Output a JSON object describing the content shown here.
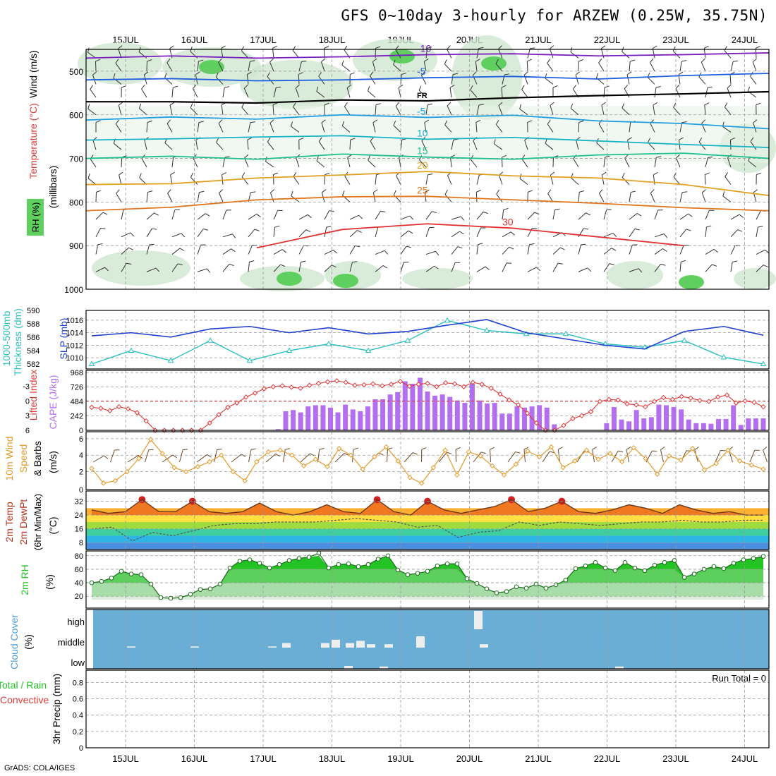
{
  "header": {
    "title": "GFS 0~10day 3-hourly for ARZEW (0.25W, 35.75N)",
    "credit": "GrADS: COLA/IGES"
  },
  "time_axis": {
    "labels": [
      "15JUL",
      "16JUL",
      "17JUL",
      "18JUL",
      "19JUL",
      "20JUL",
      "21JUL",
      "22JUL",
      "23JUL",
      "24JUL"
    ],
    "steps": 80
  },
  "colors": {
    "slp": "#1f3fcf",
    "thickness": "#2bbfbf",
    "cape": "#b36ff0",
    "lifted_index": "#e03a3a",
    "wind_speed": "#e59a2a",
    "rh_green": "#22c322",
    "cloud_bg": "#6aaed6",
    "cloud_fill": "#eeeeee",
    "grid": "#999999"
  },
  "panels": {
    "upper_air": {
      "y_labels": [
        "Wind (m/s)",
        "Temperature (°C)",
        "RH (%)",
        "(millibars)"
      ],
      "levels": [
        500,
        600,
        700,
        800,
        900,
        1000
      ],
      "isotherms": [
        {
          "label": "-10",
          "color": "#7a1fbf",
          "pressure": [
            470,
            465,
            470,
            467,
            462,
            460,
            465,
            462,
            458
          ]
        },
        {
          "label": "-5",
          "color": "#1f5fe0",
          "pressure": [
            520,
            517,
            522,
            520,
            515,
            512,
            518,
            510,
            505
          ]
        },
        {
          "label": "FR",
          "color": "#000000",
          "pressure": [
            570,
            570,
            573,
            566,
            568,
            561,
            556,
            552,
            547
          ]
        },
        {
          "label": "-5",
          "color": "#1f9fe0",
          "pressure": [
            612,
            605,
            610,
            600,
            606,
            601,
            614,
            620,
            632
          ]
        },
        {
          "label": "10",
          "color": "#17b3c3",
          "pressure": [
            658,
            655,
            651,
            648,
            656,
            652,
            660,
            668,
            675
          ]
        },
        {
          "label": "15",
          "color": "#1fbf8f",
          "pressure": [
            700,
            695,
            702,
            690,
            697,
            702,
            692,
            688,
            700
          ]
        },
        {
          "label": "20",
          "color": "#e0a020",
          "pressure": [
            760,
            758,
            745,
            738,
            730,
            740,
            745,
            760,
            785
          ]
        },
        {
          "label": "25",
          "color": "#e0761f",
          "pressure": [
            820,
            812,
            795,
            788,
            787,
            795,
            803,
            813,
            820
          ]
        },
        {
          "label": "30",
          "color": "#e03030",
          "pressure": [
            null,
            null,
            905,
            863,
            850,
            860,
            880,
            900,
            null
          ]
        }
      ]
    },
    "slp_thickness": {
      "y_labels": [
        "1000-500mb",
        "Thickness (dm)",
        "SLP (mb)"
      ],
      "thickness_ticks": [
        582,
        584,
        586,
        588,
        590
      ],
      "slp_ticks": [
        1010,
        1012,
        1014,
        1016
      ],
      "slp_mb": [
        1013.5,
        1014.0,
        1013.3,
        1014.6,
        1015.0,
        1014.0,
        1014.8,
        1013.8,
        1014.2,
        1015.2,
        1016.1,
        1014.0,
        1013.0,
        1012.0,
        1011.4,
        1014.2,
        1015.0,
        1013.6
      ],
      "thickness_dm": [
        582.0,
        584.0,
        582.5,
        585.5,
        582.5,
        584.0,
        585.0,
        584.0,
        585.5,
        588.5,
        587.0,
        586.5,
        586.5,
        585.0,
        584.5,
        585.5,
        583.0,
        582.0
      ]
    },
    "cape_li": {
      "y_labels": [
        "Lifted Index",
        "CAPE (J/kg)"
      ],
      "cape_ticks": [
        0,
        242,
        484,
        726,
        968
      ],
      "li_ticks": [
        "-3",
        "0",
        "3",
        "6"
      ],
      "cape_jkg": [
        0,
        0,
        0,
        0,
        0,
        0,
        0,
        0,
        0,
        0,
        0,
        0,
        0,
        0,
        0,
        0,
        0,
        0,
        0,
        0,
        0,
        0,
        0,
        0,
        0,
        20,
        320,
        340,
        300,
        400,
        420,
        420,
        380,
        300,
        430,
        350,
        320,
        400,
        520,
        520,
        600,
        640,
        820,
        780,
        880,
        650,
        580,
        600,
        560,
        500,
        460,
        780,
        500,
        450,
        460,
        280,
        280,
        400,
        380,
        400,
        420,
        380,
        100,
        0,
        0,
        0,
        0,
        0,
        0,
        120,
        390,
        180,
        150,
        340,
        200,
        220,
        430,
        420,
        390,
        350,
        180,
        120,
        120,
        110,
        190,
        190,
        420,
        90,
        200,
        200,
        200
      ],
      "li": [
        1.3,
        1.5,
        2.0,
        1.2,
        1.6,
        2.4,
        4.1,
        6.0,
        6.5,
        7.0,
        7.2,
        7.0,
        6.3,
        4.5,
        2.8,
        1.3,
        0.4,
        -0.8,
        -1.6,
        -2.5,
        -2.9,
        -3.1,
        -2.8,
        -2.6,
        -3.2,
        -3.6,
        -3.9,
        -4.1,
        -3.8,
        -3.2,
        -3.3,
        -3.5,
        -3.1,
        -3.4,
        -4.0,
        -3.0,
        -3.4,
        -3.6,
        -2.9,
        -3.7,
        -3.5,
        -2.9,
        -3.8,
        -3.4,
        -2.6,
        -1.4,
        -0.2,
        0.8,
        2.5,
        4.5,
        6.8,
        7.2,
        5.0,
        3.6,
        3.0,
        2.2,
        0.1,
        -0.3,
        -0.2,
        0.6,
        0.8,
        1.2,
        0.1,
        -0.7,
        -0.3,
        -0.9,
        -0.6,
        -0.1,
        0.1,
        -0.8,
        -1.2,
        0.4,
        0.0,
        0.3,
        1.2
      ],
      "cape_label_marks": [
        "968",
        "726",
        "484",
        "242"
      ]
    },
    "wind10m": {
      "y_labels": [
        "10m Wind",
        "Speed",
        "& Barbs",
        "(m/s)"
      ],
      "ticks": [
        2,
        4,
        6
      ],
      "speed_ms": [
        2.4,
        0.6,
        0.9,
        2.0,
        3.6,
        5.9,
        4.2,
        2.5,
        2.0,
        2.6,
        3.2,
        4.0,
        2.0,
        0.9,
        3.2,
        4.4,
        4.6,
        4.0,
        2.7,
        3.5,
        2.6,
        4.8,
        4.0,
        2.3,
        3.8,
        5.0,
        3.3,
        1.3,
        0.6,
        2.5,
        4.6,
        1.6,
        4.4,
        3.9,
        2.7,
        1.6,
        2.9,
        4.5,
        3.8,
        5.0,
        2.5,
        3.3,
        4.6,
        3.5,
        4.2,
        3.2,
        4.9,
        3.6,
        1.7,
        3.9,
        3.4,
        4.8,
        2.2,
        3.0,
        4.6,
        3.3,
        2.8,
        2.3
      ],
      "low_label": "0"
    },
    "temp2m": {
      "y_labels": [
        "2m Temp",
        "2m DewPt",
        "(6hr Min/Max)",
        "(°C)"
      ],
      "ticks": [
        8,
        16,
        24,
        32
      ],
      "temp_c": [
        27,
        25,
        26,
        33,
        26,
        26,
        32,
        26,
        25,
        26,
        31,
        26,
        24,
        26,
        30,
        26,
        25,
        33,
        26,
        24,
        32,
        27,
        25,
        27,
        29,
        33,
        26,
        28,
        32,
        26,
        25,
        27,
        30,
        28,
        25,
        30,
        27,
        25,
        26,
        24,
        24
      ],
      "dewpt_c": [
        16,
        17,
        9,
        14,
        12,
        15,
        18,
        19,
        19,
        20,
        20,
        20,
        21,
        22,
        21,
        20,
        17,
        18,
        11,
        14,
        15,
        20,
        18,
        20,
        19,
        18,
        19,
        20,
        20,
        21,
        20,
        20,
        21,
        21
      ]
    },
    "rh2m": {
      "y_labels": [
        "2m RH",
        "(%)"
      ],
      "ticks": [
        20,
        40,
        60,
        80
      ],
      "rh_pct": [
        40,
        42,
        47,
        57,
        53,
        52,
        38,
        18,
        17,
        18,
        23,
        30,
        31,
        38,
        62,
        72,
        74,
        69,
        62,
        67,
        73,
        76,
        78,
        84,
        62,
        67,
        68,
        64,
        67,
        75,
        80,
        59,
        52,
        54,
        57,
        65,
        68,
        68,
        46,
        39,
        31,
        25,
        27,
        34,
        32,
        38,
        32,
        37,
        44,
        61,
        65,
        70,
        62,
        58,
        70,
        62,
        58,
        66,
        70,
        73,
        48,
        53,
        60,
        64,
        61,
        69,
        74,
        76,
        79
      ]
    },
    "cloud": {
      "y_labels": [
        "Cloud Cover",
        "(%)"
      ],
      "levels": [
        "high",
        "middle",
        "low"
      ]
    },
    "precip": {
      "y_labels": [
        "Total / Rain",
        "Convective",
        "3hr Precip (mm)"
      ],
      "ticks": [
        "0",
        "0.2",
        "0.4",
        "0.6",
        "0.8"
      ],
      "run_total": "Run Total = 0"
    }
  }
}
